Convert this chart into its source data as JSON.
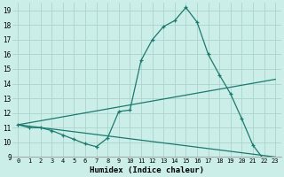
{
  "xlabel": "Humidex (Indice chaleur)",
  "background_color": "#cceee8",
  "grid_color": "#aad4cc",
  "line_color": "#1a7a6e",
  "xlim": [
    -0.5,
    23.5
  ],
  "ylim": [
    9,
    19.5
  ],
  "xticks": [
    0,
    1,
    2,
    3,
    4,
    5,
    6,
    7,
    8,
    9,
    10,
    11,
    12,
    13,
    14,
    15,
    16,
    17,
    18,
    19,
    20,
    21,
    22,
    23
  ],
  "yticks": [
    9,
    10,
    11,
    12,
    13,
    14,
    15,
    16,
    17,
    18,
    19
  ],
  "series": [
    {
      "x": [
        0,
        1,
        2,
        3,
        4,
        5,
        6,
        7,
        8,
        9,
        10,
        11,
        12,
        13,
        14,
        15,
        16,
        17,
        18,
        19,
        20,
        21,
        22,
        23
      ],
      "y": [
        11.2,
        11.0,
        11.0,
        10.8,
        10.5,
        10.2,
        9.9,
        9.7,
        10.3,
        12.1,
        12.2,
        15.6,
        17.0,
        17.9,
        18.3,
        19.2,
        18.2,
        16.0,
        14.6,
        13.3,
        11.6,
        9.8,
        8.8,
        8.6
      ],
      "marker": true
    },
    {
      "x": [
        0,
        23
      ],
      "y": [
        11.2,
        14.3
      ],
      "marker": false
    },
    {
      "x": [
        0,
        23
      ],
      "y": [
        11.2,
        9.0
      ],
      "marker": false
    }
  ]
}
